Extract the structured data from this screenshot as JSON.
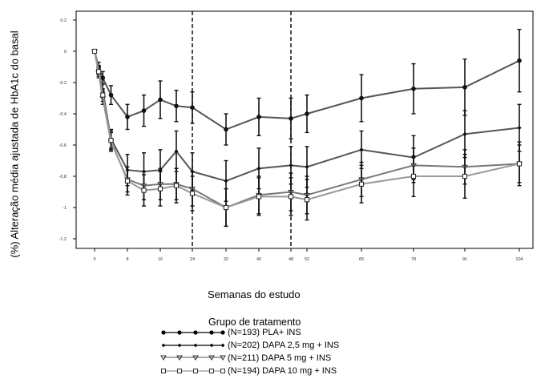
{
  "chart_data": {
    "type": "line",
    "title": "",
    "xlabel": "Semanas do estudo",
    "ylabel": "(%) Alteração média ajustada de HbA1c do basal",
    "x_ticks": [
      0,
      8,
      16,
      24,
      32,
      40,
      48,
      52,
      65,
      78,
      91,
      104
    ],
    "x_tick_labels": [
      "0",
      "8",
      "16",
      "24",
      "32",
      "40",
      "48",
      "52",
      "65",
      "78",
      "91",
      "104"
    ],
    "y_ticks": [
      0.2,
      0,
      -0.2,
      -0.4,
      -0.6,
      -0.8,
      -1,
      -1.2
    ],
    "y_tick_labels": [
      "0.2",
      "0",
      "-0.2",
      "-0.4",
      "-0.6",
      "-0.8",
      "-1",
      "-1.2"
    ],
    "ylim": [
      -1.2,
      0.2
    ],
    "vlines": [
      24,
      48
    ],
    "grid": false,
    "legend_title": "Grupo de tratamento",
    "legend_position": "bottom",
    "series": [
      {
        "name": "(N=193) PLA+ INS",
        "marker": "circle",
        "color": "#555555",
        "x": [
          0,
          1,
          2,
          4,
          8,
          12,
          16,
          20,
          24,
          32,
          40,
          48,
          52,
          65,
          78,
          91,
          104
        ],
        "y": [
          0,
          -0.1,
          -0.17,
          -0.28,
          -0.42,
          -0.38,
          -0.31,
          -0.35,
          -0.36,
          -0.5,
          -0.42,
          -0.43,
          -0.4,
          -0.3,
          -0.24,
          -0.23,
          -0.06
        ],
        "err": [
          0,
          0.03,
          0.04,
          0.06,
          0.08,
          0.1,
          0.12,
          0.1,
          0.1,
          0.1,
          0.12,
          0.13,
          0.12,
          0.15,
          0.16,
          0.18,
          0.2
        ]
      },
      {
        "name": "(N=202) DAPA 2,5 mg + INS",
        "marker": "diamond",
        "color": "#555555",
        "x": [
          0,
          1,
          2,
          4,
          8,
          12,
          16,
          20,
          24,
          32,
          40,
          48,
          52,
          65,
          78,
          91,
          104
        ],
        "y": [
          0,
          -0.12,
          -0.25,
          -0.56,
          -0.76,
          -0.77,
          -0.76,
          -0.64,
          -0.77,
          -0.83,
          -0.75,
          -0.73,
          -0.74,
          -0.63,
          -0.68,
          -0.53,
          -0.49
        ],
        "err": [
          0,
          0.03,
          0.04,
          0.06,
          0.1,
          0.12,
          0.13,
          0.13,
          0.12,
          0.13,
          0.13,
          0.12,
          0.13,
          0.12,
          0.14,
          0.15,
          0.15
        ]
      },
      {
        "name": "(N=211) DAPA 5 mg + INS",
        "marker": "triangle-down",
        "color": "#777777",
        "x": [
          0,
          1,
          2,
          4,
          8,
          12,
          16,
          20,
          24,
          32,
          40,
          48,
          52,
          65,
          78,
          91,
          104
        ],
        "y": [
          0,
          -0.14,
          -0.3,
          -0.58,
          -0.82,
          -0.86,
          -0.85,
          -0.85,
          -0.88,
          -1.0,
          -0.92,
          -0.9,
          -0.92,
          -0.82,
          -0.73,
          -0.74,
          -0.72
        ],
        "err": [
          0,
          0.03,
          0.04,
          0.06,
          0.08,
          0.09,
          0.1,
          0.1,
          0.11,
          0.12,
          0.12,
          0.12,
          0.12,
          0.11,
          0.11,
          0.11,
          0.12
        ]
      },
      {
        "name": "(N=194) DAPA 10 mg + INS",
        "marker": "square",
        "color": "#999999",
        "x": [
          0,
          1,
          2,
          4,
          8,
          12,
          16,
          20,
          24,
          32,
          40,
          48,
          52,
          65,
          78,
          91,
          104
        ],
        "y": [
          0,
          -0.13,
          -0.28,
          -0.57,
          -0.83,
          -0.89,
          -0.88,
          -0.86,
          -0.91,
          -1.0,
          -0.93,
          -0.93,
          -0.95,
          -0.85,
          -0.8,
          -0.8,
          -0.72
        ],
        "err": [
          0,
          0.03,
          0.04,
          0.06,
          0.09,
          0.1,
          0.11,
          0.11,
          0.11,
          0.12,
          0.12,
          0.12,
          0.13,
          0.12,
          0.13,
          0.14,
          0.14
        ]
      }
    ]
  }
}
